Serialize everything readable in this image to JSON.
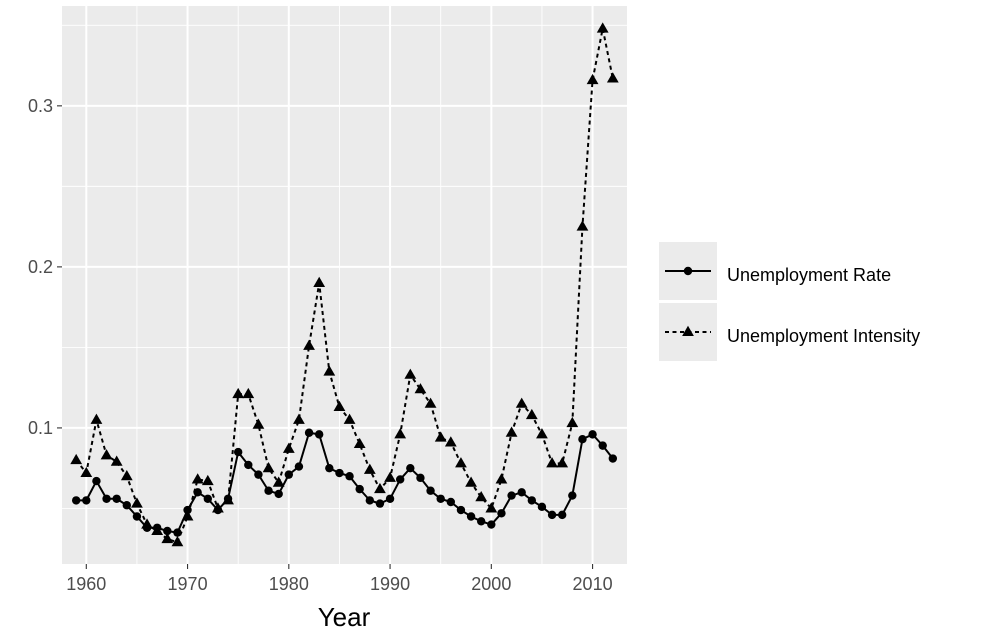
{
  "chart_data": {
    "type": "line",
    "title": "",
    "xlabel": "Year",
    "ylabel": "",
    "xlim": [
      1957.6,
      2013.4
    ],
    "ylim": [
      0.0155,
      0.362
    ],
    "x_ticks": [
      1960,
      1970,
      1980,
      1990,
      2000,
      2010
    ],
    "x_tick_labels": [
      "1960",
      "1970",
      "1980",
      "1990",
      "2000",
      "2010"
    ],
    "y_ticks": [
      0.1,
      0.2,
      0.3
    ],
    "y_tick_labels": [
      "0.1",
      "0.2",
      "0.3"
    ],
    "grid": true,
    "legend_position": "right",
    "colors": {
      "panel": "#ebebeb",
      "grid": "#ffffff",
      "series": "#000000",
      "axis_text": "#4d4d4d",
      "axis_title": "#000000"
    },
    "x": [
      1959,
      1960,
      1961,
      1962,
      1963,
      1964,
      1965,
      1966,
      1967,
      1968,
      1969,
      1970,
      1971,
      1972,
      1973,
      1974,
      1975,
      1976,
      1977,
      1978,
      1979,
      1980,
      1981,
      1982,
      1983,
      1984,
      1985,
      1986,
      1987,
      1988,
      1989,
      1990,
      1991,
      1992,
      1993,
      1994,
      1995,
      1996,
      1997,
      1998,
      1999,
      2000,
      2001,
      2002,
      2003,
      2004,
      2005,
      2006,
      2007,
      2008,
      2009,
      2010,
      2011,
      2012
    ],
    "series": [
      {
        "name": "Unemployment Rate",
        "line": "solid",
        "marker": "circle",
        "values": [
          0.055,
          0.055,
          0.067,
          0.056,
          0.056,
          0.052,
          0.045,
          0.038,
          0.038,
          0.036,
          0.035,
          0.049,
          0.06,
          0.056,
          0.049,
          0.056,
          0.085,
          0.077,
          0.071,
          0.061,
          0.059,
          0.071,
          0.076,
          0.097,
          0.096,
          0.075,
          0.072,
          0.07,
          0.062,
          0.055,
          0.053,
          0.056,
          0.068,
          0.075,
          0.069,
          0.061,
          0.056,
          0.054,
          0.049,
          0.045,
          0.042,
          0.04,
          0.047,
          0.058,
          0.06,
          0.055,
          0.051,
          0.046,
          0.046,
          0.058,
          0.093,
          0.096,
          0.089,
          0.081
        ]
      },
      {
        "name": "Unemployment Intensity",
        "line": "dashed",
        "marker": "triangle",
        "values": [
          0.08,
          0.072,
          0.105,
          0.083,
          0.079,
          0.07,
          0.053,
          0.04,
          0.036,
          0.031,
          0.029,
          0.045,
          0.068,
          0.067,
          0.05,
          0.055,
          0.121,
          0.121,
          0.102,
          0.075,
          0.066,
          0.087,
          0.105,
          0.151,
          0.19,
          0.135,
          0.113,
          0.105,
          0.09,
          0.074,
          0.062,
          0.069,
          0.096,
          0.133,
          0.124,
          0.115,
          0.094,
          0.091,
          0.078,
          0.066,
          0.057,
          0.05,
          0.068,
          0.097,
          0.115,
          0.108,
          0.096,
          0.078,
          0.078,
          0.103,
          0.225,
          0.316,
          0.348,
          0.317
        ]
      }
    ]
  }
}
